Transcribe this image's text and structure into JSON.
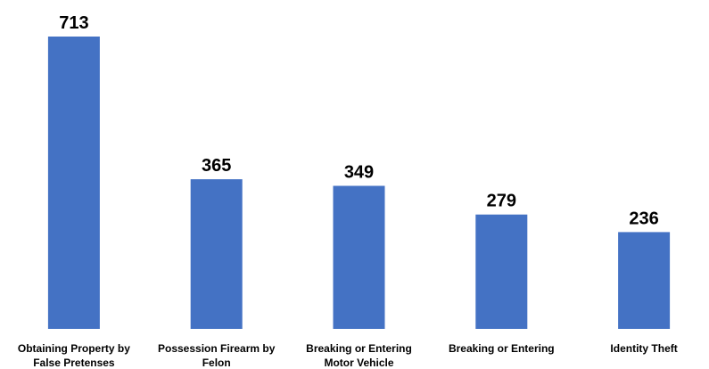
{
  "chart_data": {
    "type": "bar",
    "categories": [
      [
        "Obtaining Property by",
        "False Pretenses"
      ],
      [
        "Possession Firearm by",
        "Felon"
      ],
      [
        "Breaking or Entering",
        "Motor Vehicle"
      ],
      [
        "Breaking or Entering"
      ],
      [
        "Identity Theft"
      ]
    ],
    "values": [
      713,
      365,
      349,
      279,
      236
    ],
    "data_labels": [
      "713",
      "365",
      "349",
      "279",
      "236"
    ],
    "ylim": [
      0,
      713
    ],
    "grid": false,
    "legend": "none",
    "colors": {
      "bar": "#4472C4",
      "text": "#000000"
    }
  }
}
